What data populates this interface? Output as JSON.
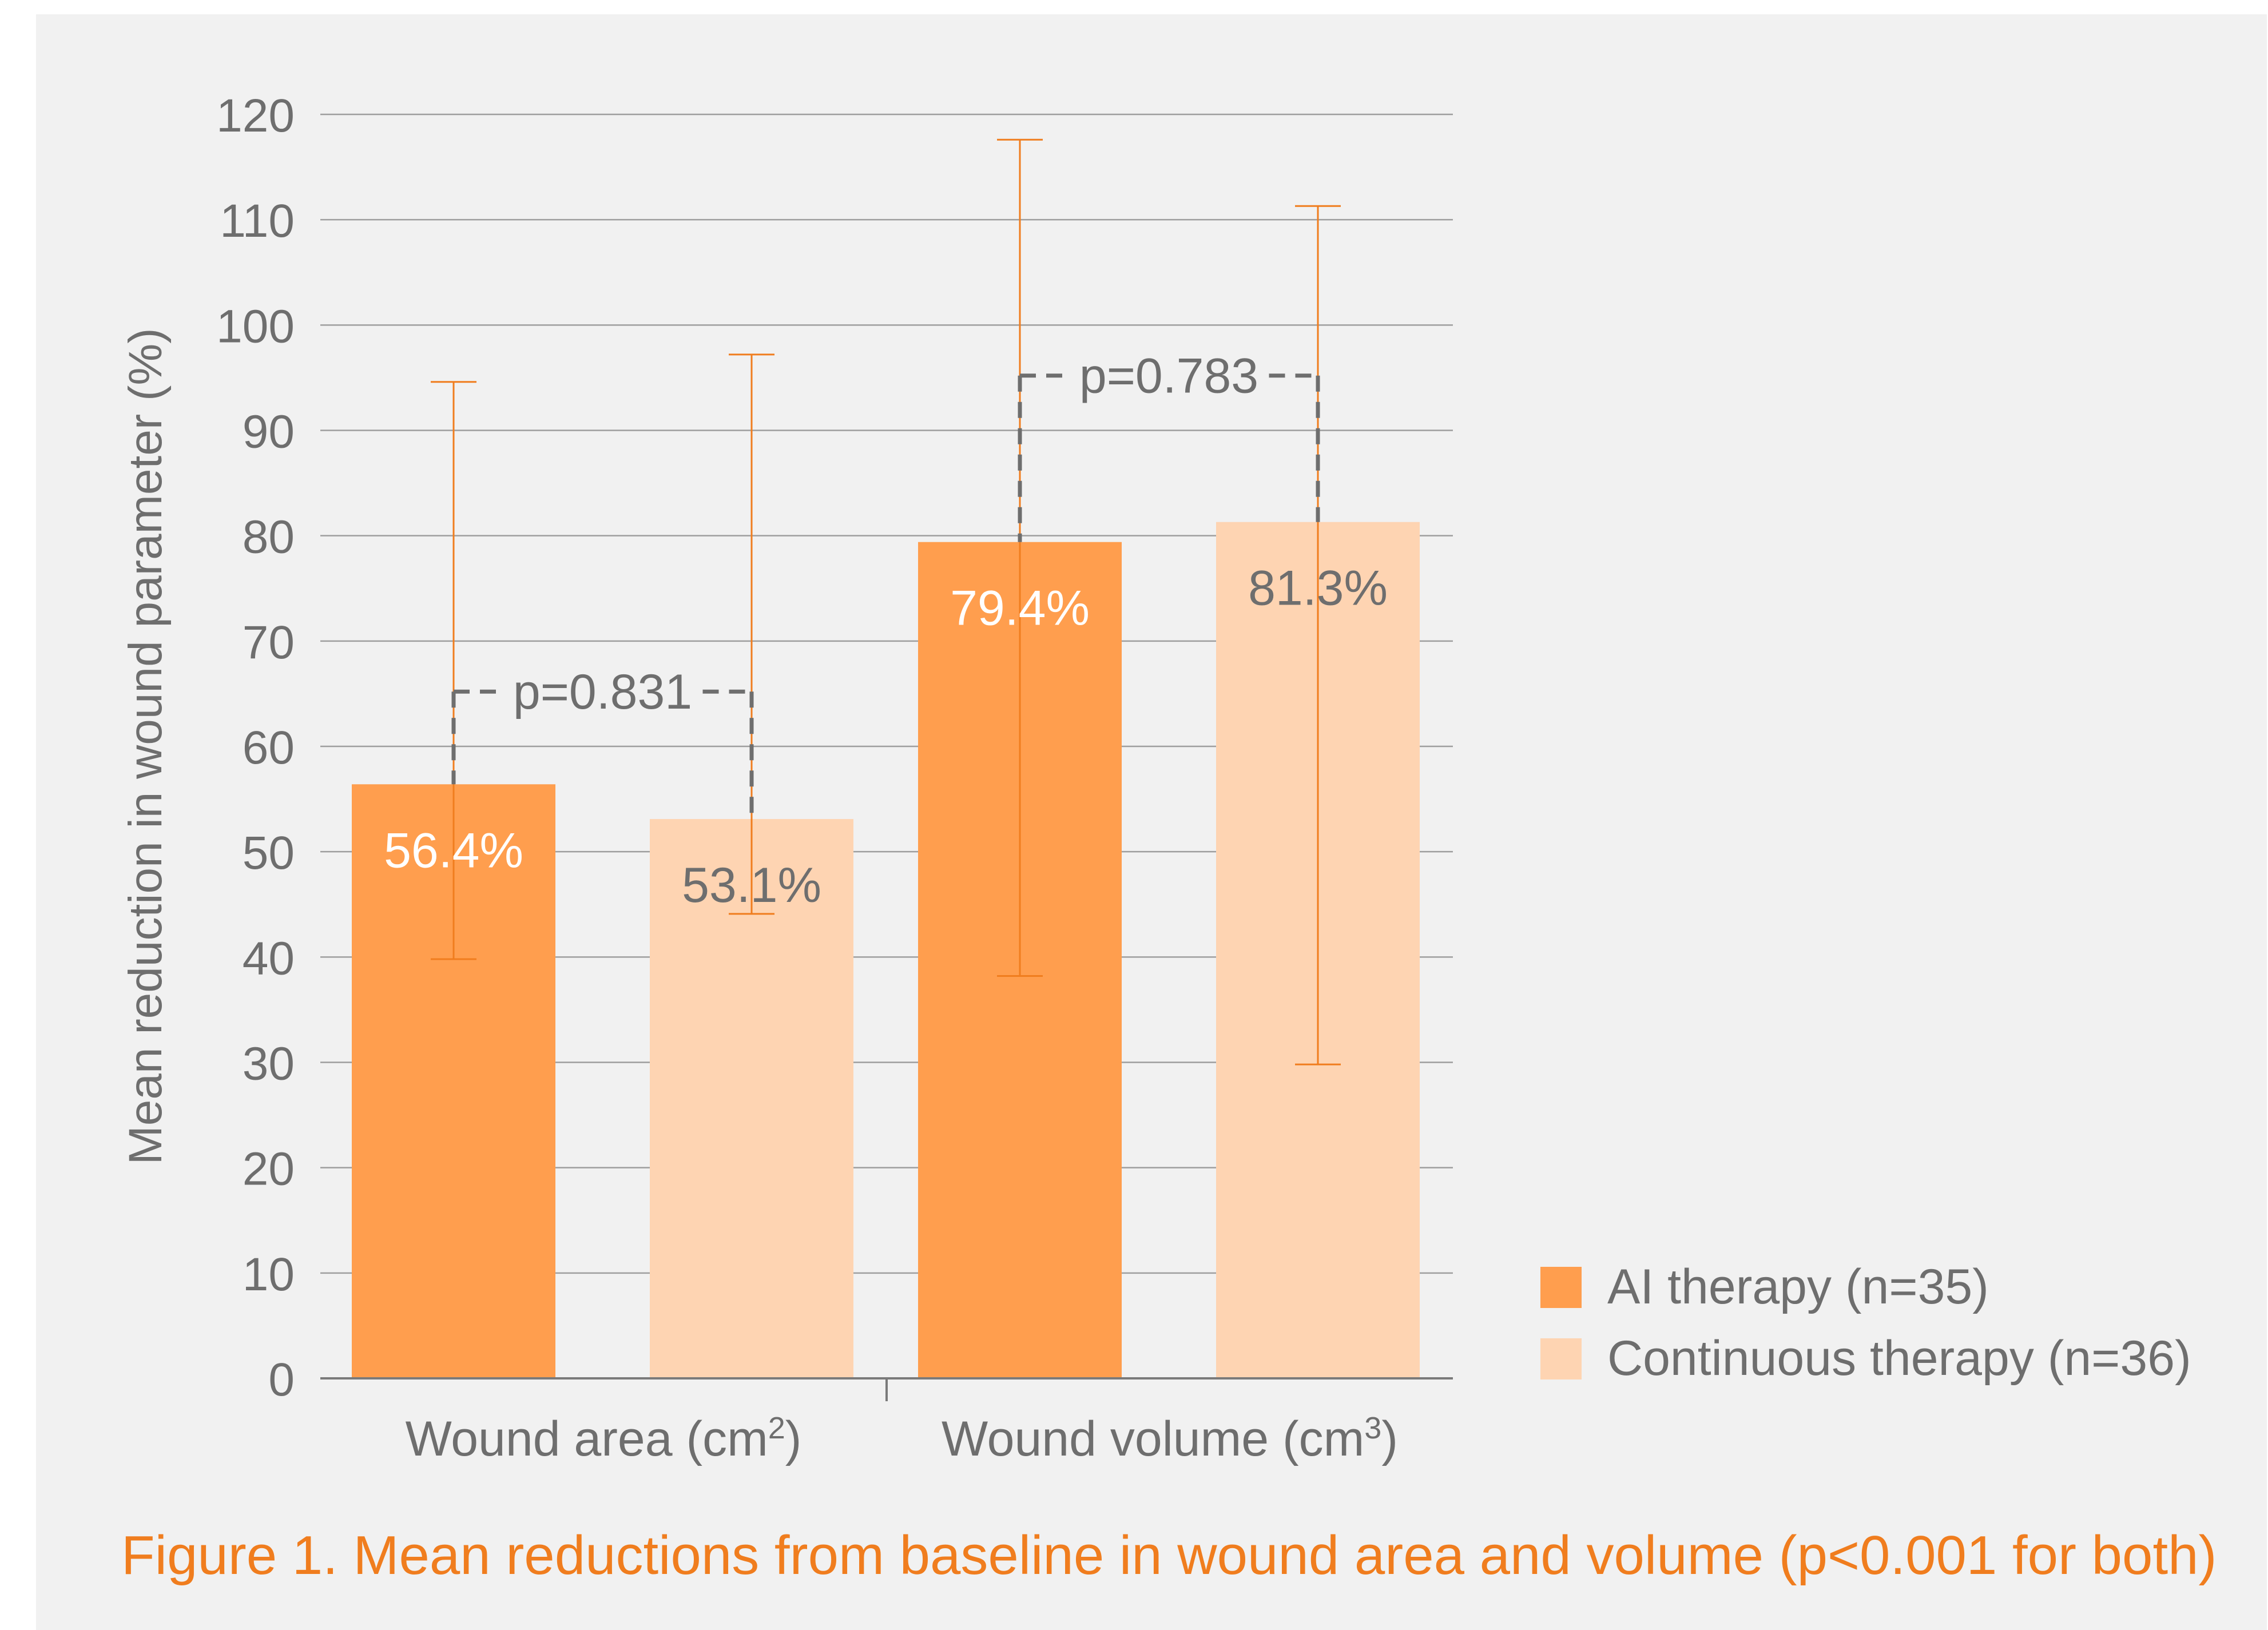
{
  "caption": "Figure 1. Mean reductions from baseline in wound area and volume (p<0.001 for both)",
  "chart_data": {
    "type": "bar",
    "ylabel": "Mean reduction in wound parameter (%)",
    "ylim": [
      0,
      120
    ],
    "yticks": [
      0,
      10,
      20,
      30,
      40,
      50,
      60,
      70,
      80,
      90,
      100,
      110,
      120
    ],
    "grid": true,
    "categories": [
      {
        "base": "Wound area (cm",
        "sup": "2",
        "end": ")"
      },
      {
        "base": "Wound volume (cm",
        "sup": "3",
        "end": ")"
      }
    ],
    "series": [
      {
        "name": "AI therapy (n=35)",
        "color": "#ff9e4e",
        "label_color": "#ffffff",
        "values": [
          56.4,
          79.4
        ],
        "labels": [
          "56.4%",
          "79.4%"
        ],
        "err_low": [
          39.8,
          38.2
        ],
        "err_high": [
          94.6,
          117.6
        ]
      },
      {
        "name": "Continuous therapy (n=36)",
        "color": "#fed4b2",
        "label_color": "#6e6e6e",
        "values": [
          53.1,
          81.3
        ],
        "labels": [
          "53.1%",
          "81.3%"
        ],
        "err_low": [
          44.1,
          29.8
        ],
        "err_high": [
          97.2,
          111.3
        ]
      }
    ],
    "annotations": [
      {
        "category": 0,
        "text": "p=0.831",
        "y": 65.2
      },
      {
        "category": 1,
        "text": "p=0.783",
        "y": 95.2
      }
    ],
    "error_color": "#f07d1e",
    "legend_position": "bottom-right"
  }
}
